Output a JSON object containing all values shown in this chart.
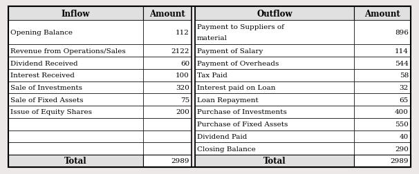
{
  "outer_bg": "#ede8e8",
  "table_bg": "#ffffff",
  "header_bg": "#e0e0e0",
  "border_color": "#000000",
  "inflow_header": "Inflow",
  "amount_header_left": "Amount",
  "outflow_header": "Outflow",
  "amount_header_right": "Amount",
  "inflow_rows": [
    {
      "label": "Opening Balance",
      "amount": "112"
    },
    {
      "label": "Revenue from Operations/Sales",
      "amount": "2122"
    },
    {
      "label": "Dividend Received",
      "amount": "60"
    },
    {
      "label": "Interest Received",
      "amount": "100"
    },
    {
      "label": "Sale of Investments",
      "amount": "320"
    },
    {
      "label": "Sale of Fixed Assets",
      "amount": "75"
    },
    {
      "label": "Issue of Equity Shares",
      "amount": "200"
    },
    {
      "label": "",
      "amount": ""
    },
    {
      "label": "",
      "amount": ""
    },
    {
      "label": "",
      "amount": ""
    }
  ],
  "outflow_rows": [
    {
      "label": "Payment to Suppliers of\nmaterial",
      "amount": "896"
    },
    {
      "label": "Payment of Salary",
      "amount": "114"
    },
    {
      "label": "Payment of Overheads",
      "amount": "544"
    },
    {
      "label": "Tax Paid",
      "amount": "58"
    },
    {
      "label": "Interest paid on Loan",
      "amount": "32"
    },
    {
      "label": "Loan Repayment",
      "amount": "65"
    },
    {
      "label": "Purchase of Investments",
      "amount": "400"
    },
    {
      "label": "Purchase of Fixed Assets",
      "amount": "550"
    },
    {
      "label": "Dividend Paid",
      "amount": "40"
    },
    {
      "label": "Closing Balance",
      "amount": "290"
    }
  ],
  "total_label": "Total",
  "inflow_total": "2989",
  "outflow_total": "2989",
  "font_size": 7.5,
  "header_font_size": 8.5,
  "fig_width": 6.06,
  "fig_height": 2.53,
  "dpi": 100
}
